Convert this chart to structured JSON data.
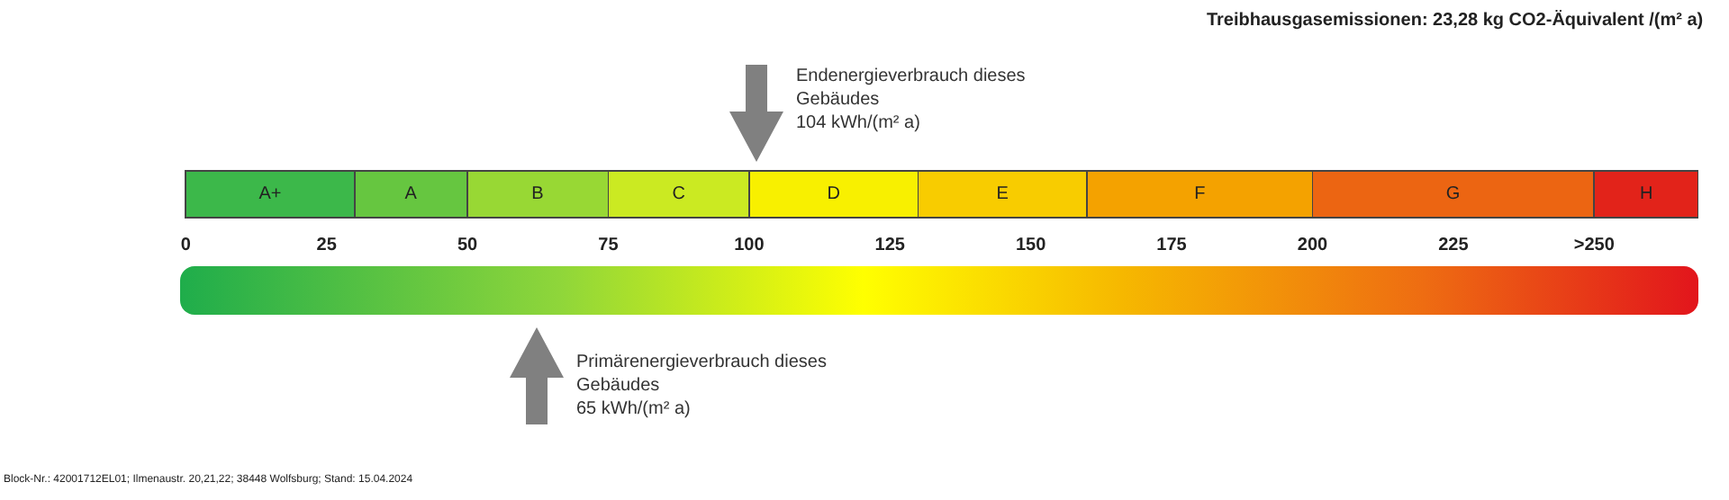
{
  "chart_data": {
    "type": "bar",
    "orientation": "horizontal",
    "stacked": true,
    "title": "Treibhausgasemissionen: 23,28 kg CO2-Äquivalent /(m² a)",
    "categories": [
      null
    ],
    "xlim": [
      -1,
      268.5
    ],
    "xticks": [
      0,
      25,
      50,
      75,
      100,
      125,
      150,
      175,
      200,
      225,
      {
        "value": 250,
        "label": ">250"
      }
    ],
    "series": [
      {
        "name": "A+",
        "color": "#3cb84a",
        "values": [
          30
        ]
      },
      {
        "name": "A",
        "color": "#66c640",
        "values": [
          20
        ]
      },
      {
        "name": "B",
        "color": "#98d834",
        "values": [
          25
        ]
      },
      {
        "name": "C",
        "color": "#cbea22",
        "values": [
          25
        ]
      },
      {
        "name": "D",
        "color": "#f8f000",
        "values": [
          30
        ]
      },
      {
        "name": "E",
        "color": "#f8cc00",
        "values": [
          30
        ]
      },
      {
        "name": "F",
        "color": "#f4a200",
        "values": [
          40
        ]
      },
      {
        "name": "G",
        "color": "#ec6512",
        "values": [
          50
        ]
      },
      {
        "name": "H",
        "color": "#e2231a",
        "values": [
          18.5
        ]
      }
    ],
    "annotations": [
      "Endenergieverbrauch dieses\nGebäudes\n104 kWh/(m² a)",
      "Primärenergieverbrauch dieses\nGebäudes\n65 kWh/(m² a)",
      "Block-Nr.: 42001712EL01; Ilmenaustr. 20,21,22; 38448 Wolfsburg; Stand: 15.04.2024"
    ]
  }
}
